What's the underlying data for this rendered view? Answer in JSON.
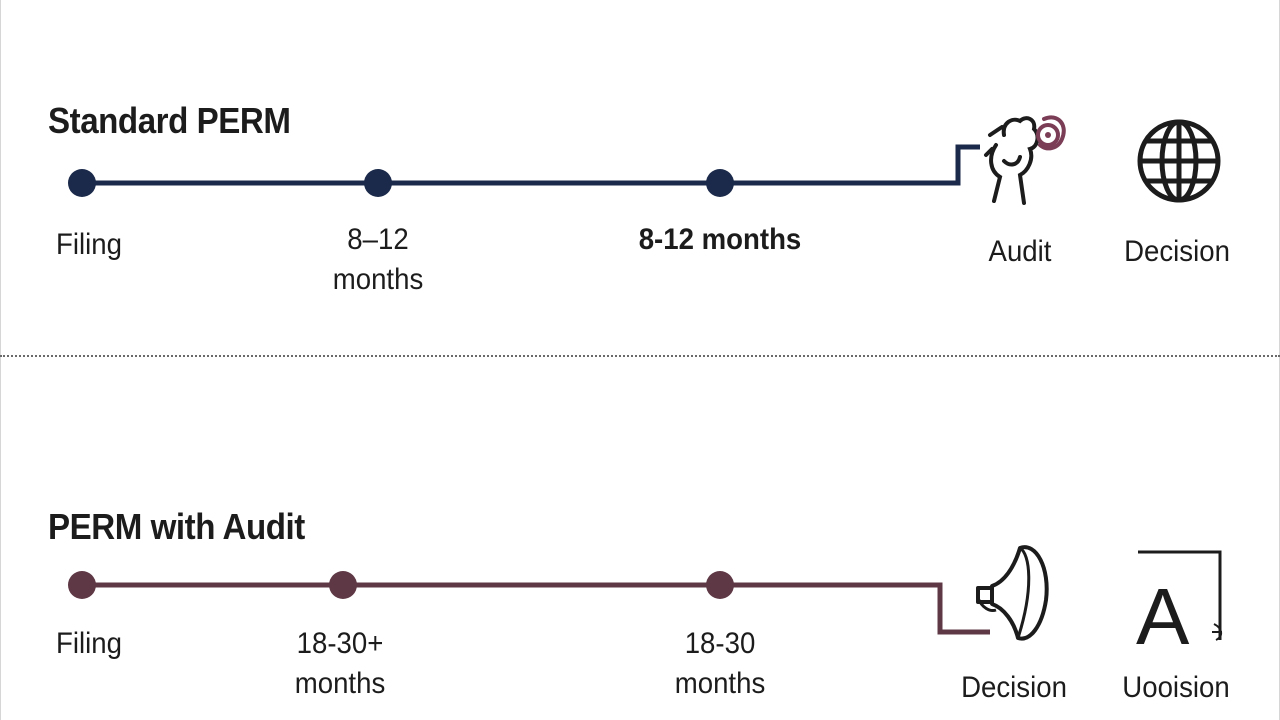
{
  "standard": {
    "title": "Standard PERM",
    "milestones": {
      "filing": "Filing",
      "first": [
        "8–12",
        "months"
      ],
      "second": "8-12 months"
    },
    "icons": [
      {
        "icon": "audit-icon",
        "label": "Audit"
      },
      {
        "icon": "globe-icon",
        "label": "Decision"
      }
    ],
    "color": "#1b2a4a",
    "accent": "#7a3d55"
  },
  "audit": {
    "title": "PERM with Audit",
    "milestones": {
      "filing": "Filing",
      "first": [
        "18-30+",
        "months"
      ],
      "second": [
        "18-30",
        "months"
      ]
    },
    "icons": [
      {
        "icon": "megaphone-icon",
        "label": "Decision"
      },
      {
        "icon": "letter-a-icon",
        "label": "Uooision",
        "glyph": "A"
      }
    ],
    "color": "#5e3844"
  }
}
